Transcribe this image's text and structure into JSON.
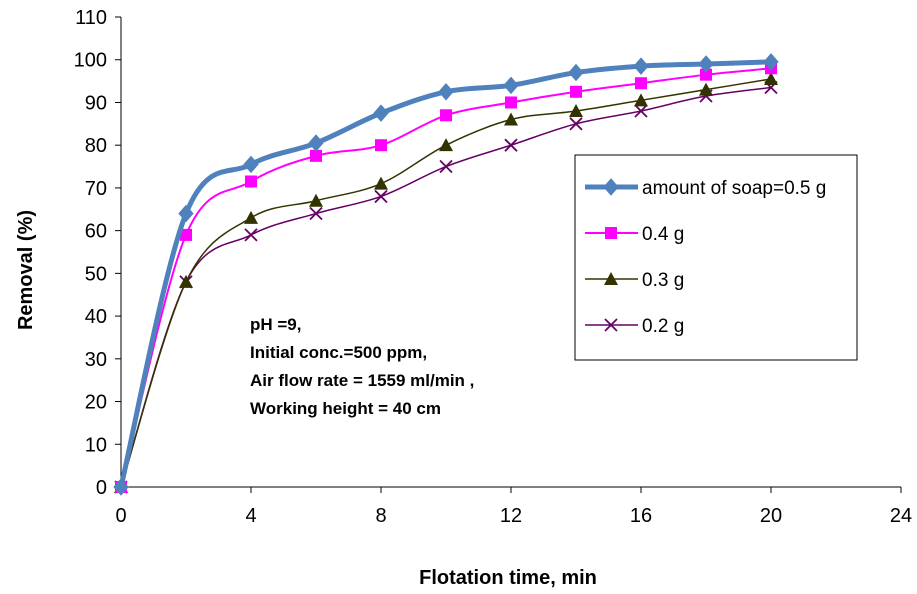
{
  "chart_data": {
    "type": "line",
    "title": "",
    "xlabel": "Flotation time, min",
    "ylabel": "Removal (%)",
    "xlim": [
      0,
      24
    ],
    "ylim": [
      0,
      110
    ],
    "xticks": [
      0,
      4,
      8,
      12,
      16,
      20,
      24
    ],
    "yticks": [
      0,
      10,
      20,
      30,
      40,
      50,
      60,
      70,
      80,
      90,
      100,
      110
    ],
    "grid": false,
    "legend_position": "right",
    "x": [
      0,
      2,
      4,
      6,
      8,
      10,
      12,
      14,
      16,
      18,
      20
    ],
    "series": [
      {
        "name": "amount of soap=0.5 g",
        "color": "#4f81bd",
        "marker": "diamond",
        "values": [
          0,
          64,
          75.5,
          80.5,
          87.5,
          92.5,
          94,
          97,
          98.5,
          99,
          99.5
        ]
      },
      {
        "name": "0.4 g",
        "color": "#ff00ff",
        "marker": "square",
        "values": [
          0,
          59,
          71.5,
          77.5,
          80,
          87,
          90,
          92.5,
          94.5,
          96.5,
          98
        ]
      },
      {
        "name": "0.3 g",
        "color": "#333300",
        "marker": "triangle",
        "values": [
          0,
          48,
          63,
          67,
          71,
          80,
          86,
          88,
          90.5,
          93,
          95.5
        ]
      },
      {
        "name": "0.2 g",
        "color": "#660066",
        "marker": "x",
        "values": [
          0,
          48,
          59,
          64,
          68,
          75,
          80,
          85,
          88,
          91.5,
          93.5
        ]
      }
    ],
    "annotation": [
      "pH =9,",
      "Initial conc.=500 ppm,",
      "Air flow rate = 1559 ml/min ,",
      "Working height = 40 cm"
    ]
  }
}
